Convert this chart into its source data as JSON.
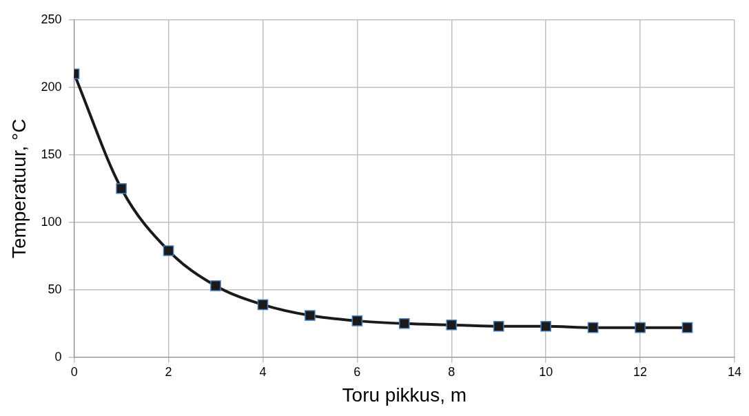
{
  "chart_data": {
    "type": "line",
    "xlabel": "Toru pikkus, m",
    "ylabel": "Temperatuur, °C",
    "x": [
      0,
      1,
      2,
      3,
      4,
      5,
      6,
      7,
      8,
      9,
      10,
      11,
      12,
      13
    ],
    "series": [
      {
        "color": "#1a1a1a",
        "values": [
          210,
          125,
          79,
          53,
          39,
          31,
          27,
          25,
          24,
          23,
          23,
          22,
          22,
          22
        ]
      }
    ],
    "xlim": [
      0,
      14
    ],
    "xticks": [
      0,
      2,
      4,
      6,
      8,
      10,
      12,
      14
    ],
    "ylim": [
      0,
      250
    ],
    "yticks": [
      0,
      50,
      100,
      150,
      200,
      250
    ],
    "grid": true,
    "legend": false,
    "marker": "square",
    "line_style": "solid"
  }
}
